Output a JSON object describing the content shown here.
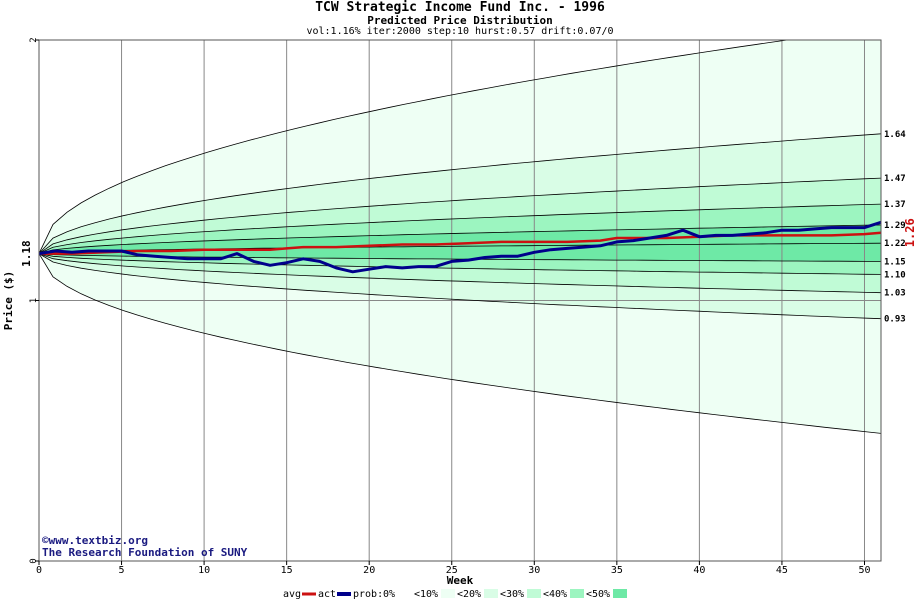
{
  "header": {
    "title": "TCW Strategic Income Fund Inc. - 1996",
    "subtitle": "Predicted Price Distribution",
    "params": "vol:1.16% iter:2000 step:10 hurst:0.57 drift:0.07/0"
  },
  "credits": {
    "line1": "©www.textbiz.org",
    "line2": "The Research Foundation of SUNY"
  },
  "colors": {
    "avg": "#cc1111",
    "act": "#00008b",
    "band_0": "#ffffff",
    "band_10": "#eefff4",
    "band_20": "#d9fde6",
    "band_30": "#c0fbd6",
    "band_40": "#9cf5c0",
    "band_50": "#6ee9a6",
    "grid": "#888888"
  },
  "chart_data": {
    "type": "line",
    "title": "TCW Strategic Income Fund Inc. - 1996",
    "xlabel": "Week",
    "ylabel": "Price ($)",
    "xlim": [
      0,
      51
    ],
    "ylim": [
      0,
      2
    ],
    "x_ticks": [
      0,
      5,
      10,
      15,
      20,
      25,
      30,
      35,
      40,
      45,
      50
    ],
    "y_ticks": [
      0,
      1,
      2
    ],
    "start_label": "1.18",
    "end_label": "1.26",
    "grid": true,
    "legend_position": "bottom",
    "legend": {
      "avg": "avg",
      "act": "act",
      "prob_prefix": "prob:",
      "bands": [
        "0%",
        "<10%",
        "<20%",
        "<30%",
        "<40%",
        "<50%"
      ]
    },
    "percentile_bands": [
      {
        "label": "1.64",
        "final": 1.64,
        "start": 1.18
      },
      {
        "label": "1.47",
        "final": 1.47,
        "start": 1.18
      },
      {
        "label": "1.37",
        "final": 1.37,
        "start": 1.18
      },
      {
        "label": "1.29",
        "final": 1.29,
        "start": 1.18
      },
      {
        "label": "1.22",
        "final": 1.22,
        "start": 1.18
      },
      {
        "label": "1.15",
        "final": 1.15,
        "start": 1.18
      },
      {
        "label": "1.10",
        "final": 1.1,
        "start": 1.18
      },
      {
        "label": "1.03",
        "final": 1.03,
        "start": 1.18
      },
      {
        "label": "0.93",
        "final": 0.93,
        "start": 1.18
      }
    ],
    "envelope": {
      "upper_final": 2.05,
      "lower_final": 0.49
    },
    "series": [
      {
        "name": "avg",
        "x": [
          0,
          2,
          4,
          6,
          8,
          10,
          12,
          14,
          15,
          16,
          18,
          20,
          22,
          24,
          26,
          28,
          30,
          32,
          34,
          35,
          36,
          38,
          40,
          42,
          44,
          46,
          48,
          50,
          51
        ],
        "values": [
          1.18,
          1.18,
          1.185,
          1.19,
          1.19,
          1.195,
          1.195,
          1.195,
          1.2,
          1.205,
          1.205,
          1.21,
          1.215,
          1.215,
          1.22,
          1.225,
          1.225,
          1.225,
          1.23,
          1.24,
          1.24,
          1.24,
          1.245,
          1.25,
          1.25,
          1.25,
          1.25,
          1.255,
          1.26
        ]
      },
      {
        "name": "act",
        "x": [
          0,
          1,
          2,
          3,
          4,
          5,
          6,
          7,
          8,
          9,
          10,
          11,
          12,
          13,
          14,
          15,
          16,
          17,
          18,
          19,
          20,
          21,
          22,
          23,
          24,
          25,
          26,
          27,
          28,
          29,
          30,
          31,
          32,
          33,
          34,
          35,
          36,
          37,
          38,
          39,
          40,
          41,
          42,
          43,
          44,
          45,
          46,
          47,
          48,
          49,
          50,
          51
        ],
        "values": [
          1.18,
          1.19,
          1.185,
          1.19,
          1.19,
          1.19,
          1.175,
          1.17,
          1.165,
          1.16,
          1.16,
          1.16,
          1.18,
          1.15,
          1.135,
          1.145,
          1.16,
          1.15,
          1.125,
          1.11,
          1.12,
          1.13,
          1.125,
          1.13,
          1.13,
          1.15,
          1.155,
          1.165,
          1.17,
          1.17,
          1.185,
          1.195,
          1.2,
          1.205,
          1.21,
          1.225,
          1.23,
          1.24,
          1.25,
          1.27,
          1.245,
          1.25,
          1.25,
          1.255,
          1.26,
          1.27,
          1.27,
          1.275,
          1.28,
          1.28,
          1.28,
          1.3
        ]
      }
    ]
  }
}
